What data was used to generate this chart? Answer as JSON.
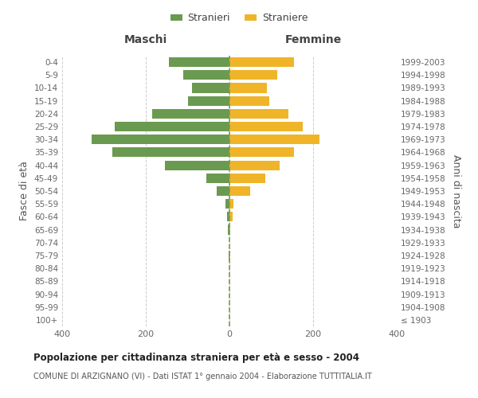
{
  "age_groups": [
    "100+",
    "95-99",
    "90-94",
    "85-89",
    "80-84",
    "75-79",
    "70-74",
    "65-69",
    "60-64",
    "55-59",
    "50-54",
    "45-49",
    "40-44",
    "35-39",
    "30-34",
    "25-29",
    "20-24",
    "15-19",
    "10-14",
    "5-9",
    "0-4"
  ],
  "birth_years": [
    "≤ 1903",
    "1904-1908",
    "1909-1913",
    "1914-1918",
    "1919-1923",
    "1924-1928",
    "1929-1933",
    "1934-1938",
    "1939-1943",
    "1944-1948",
    "1949-1953",
    "1954-1958",
    "1959-1963",
    "1964-1968",
    "1969-1973",
    "1974-1978",
    "1979-1983",
    "1984-1988",
    "1989-1993",
    "1994-1998",
    "1999-2003"
  ],
  "males": [
    0,
    0,
    0,
    0,
    0,
    1,
    0,
    3,
    5,
    10,
    30,
    55,
    155,
    280,
    330,
    275,
    185,
    100,
    90,
    110,
    145
  ],
  "females": [
    0,
    0,
    0,
    0,
    0,
    1,
    0,
    2,
    8,
    10,
    50,
    85,
    120,
    155,
    215,
    175,
    140,
    95,
    90,
    115,
    155
  ],
  "male_color": "#6a9a50",
  "female_color": "#f0b429",
  "background_color": "#ffffff",
  "grid_color": "#cccccc",
  "xlim": [
    -400,
    400
  ],
  "xticks": [
    -400,
    -200,
    0,
    200,
    400
  ],
  "title": "Popolazione per cittadinanza straniera per età e sesso - 2004",
  "subtitle": "COMUNE DI ARZIGNANO (VI) - Dati ISTAT 1° gennaio 2004 - Elaborazione TUTTITALIA.IT",
  "legend_male": "Stranieri",
  "legend_female": "Straniere",
  "xlabel_left": "Maschi",
  "xlabel_right": "Femmine",
  "ylabel_left": "Fasce di età",
  "ylabel_right": "Anni di nascita",
  "center_line_color": "#7a9a50"
}
